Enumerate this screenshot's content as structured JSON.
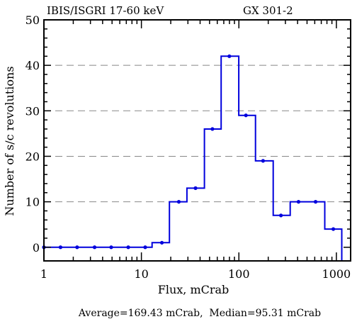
{
  "chart_data": {
    "type": "histogram",
    "title_left": "IBIS/ISGRI 17-60 keV",
    "title_right": "GX 301-2",
    "xlabel": "Flux, mCrab",
    "ylabel": "Number of s/c revolutions",
    "footer": "Average=169.43 mCrab,  Median=95.31 mCrab",
    "x_scale": "log",
    "xlim": [
      1,
      1400
    ],
    "ylim": [
      -3,
      50
    ],
    "x_ticks": [
      1,
      10,
      100,
      1000
    ],
    "x_tick_labels": [
      "1",
      "10",
      "100",
      "1000"
    ],
    "y_ticks": [
      0,
      10,
      20,
      30,
      40,
      50
    ],
    "y_tick_labels": [
      "0",
      "10",
      "20",
      "30",
      "40",
      "50"
    ],
    "grid": "horizontal dashed",
    "bins": [
      {
        "x0": 1,
        "x1": 1.17,
        "count": 0
      },
      {
        "x0": 1.17,
        "x1": 1.78,
        "count": 0
      },
      {
        "x0": 1.78,
        "x1": 2.69,
        "count": 0
      },
      {
        "x0": 2.69,
        "x1": 4.08,
        "count": 0
      },
      {
        "x0": 4.08,
        "x1": 6.18,
        "count": 0
      },
      {
        "x0": 6.18,
        "x1": 9.37,
        "count": 0
      },
      {
        "x0": 9.37,
        "x1": 12.86,
        "count": 0
      },
      {
        "x0": 12.86,
        "x1": 19.4,
        "count": 1
      },
      {
        "x0": 19.4,
        "x1": 29.3,
        "count": 10
      },
      {
        "x0": 29.3,
        "x1": 44.3,
        "count": 13
      },
      {
        "x0": 44.3,
        "x1": 65.8,
        "count": 26
      },
      {
        "x0": 65.8,
        "x1": 99.7,
        "count": 42
      },
      {
        "x0": 99.7,
        "x1": 148,
        "count": 29
      },
      {
        "x0": 148,
        "x1": 225,
        "count": 19
      },
      {
        "x0": 225,
        "x1": 336,
        "count": 7
      },
      {
        "x0": 336,
        "x1": 500,
        "count": 10
      },
      {
        "x0": 500,
        "x1": 760,
        "count": 10
      },
      {
        "x0": 760,
        "x1": 1135,
        "count": 4
      }
    ],
    "points": [
      {
        "x": 1.0,
        "y": 0
      },
      {
        "x": 1.48,
        "y": 0
      },
      {
        "x": 2.19,
        "y": 0
      },
      {
        "x": 3.31,
        "y": 0
      },
      {
        "x": 4.9,
        "y": 0
      },
      {
        "x": 7.33,
        "y": 0
      },
      {
        "x": 10.94,
        "y": 0
      },
      {
        "x": 16.22,
        "y": 1
      },
      {
        "x": 24.2,
        "y": 10
      },
      {
        "x": 35.9,
        "y": 13
      },
      {
        "x": 53.5,
        "y": 26
      },
      {
        "x": 79.8,
        "y": 42
      },
      {
        "x": 118,
        "y": 29
      },
      {
        "x": 177,
        "y": 19
      },
      {
        "x": 270,
        "y": 7
      },
      {
        "x": 409,
        "y": 10
      },
      {
        "x": 612,
        "y": 10
      },
      {
        "x": 930,
        "y": 4
      }
    ],
    "colors": {
      "series": "#0000dd",
      "grid": "#888888",
      "axis": "#000000"
    }
  }
}
